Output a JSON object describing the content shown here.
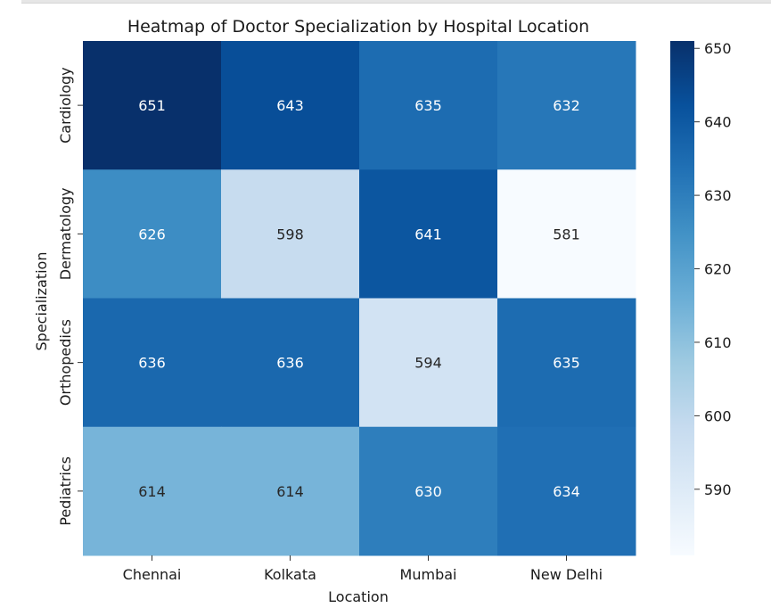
{
  "chart_data": {
    "type": "heatmap",
    "title": "Heatmap of Doctor Specialization by Hospital Location",
    "xlabel": "Location",
    "ylabel": "Specialization",
    "x_categories": [
      "Chennai",
      "Kolkata",
      "Mumbai",
      "New Delhi"
    ],
    "y_categories": [
      "Cardiology",
      "Dermatology",
      "Orthopedics",
      "Pediatrics"
    ],
    "values": [
      [
        651,
        643,
        635,
        632
      ],
      [
        626,
        598,
        641,
        581
      ],
      [
        636,
        636,
        594,
        635
      ],
      [
        614,
        614,
        630,
        634
      ]
    ],
    "colormap": "Blues",
    "vmin": 581,
    "vmax": 651,
    "colorbar_ticks": [
      590,
      600,
      610,
      620,
      630,
      640,
      650
    ],
    "colorbar_tick_labels": [
      "590",
      "600",
      "610",
      "620",
      "630",
      "640",
      "650"
    ]
  }
}
